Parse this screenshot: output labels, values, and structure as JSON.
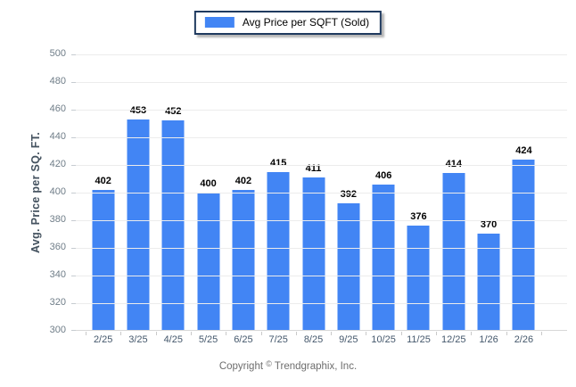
{
  "legend": {
    "label": "Avg Price per SQFT (Sold)",
    "swatch_color": "#4285f4"
  },
  "chart_data": {
    "type": "bar",
    "title": "",
    "categories": [
      "2/25",
      "3/25",
      "4/25",
      "5/25",
      "6/25",
      "7/25",
      "8/25",
      "9/25",
      "10/25",
      "11/25",
      "12/25",
      "1/26",
      "2/26"
    ],
    "series": [
      {
        "name": "Avg Price per SQFT (Sold)",
        "color": "#4285f4",
        "values": [
          402,
          453,
          452,
          400,
          402,
          415,
          411,
          392,
          406,
          376,
          414,
          370,
          424
        ]
      }
    ],
    "xlabel": "",
    "ylabel": "Avg. Price per SQ. FT.",
    "ylim": [
      300,
      500
    ],
    "ytick_step": 20,
    "grid": true,
    "legend_position": "top-center",
    "colors": {
      "bar": "#4285f4",
      "gridline": "#ececec",
      "y_tick_text": "#6f7d88",
      "x_tick_text": "#45586c",
      "axis_title_text": "#44525f",
      "value_label_text": "#000000",
      "legend_border": "#1f3a5f"
    }
  },
  "footer": {
    "prefix": "Copyright",
    "symbol": "©",
    "company": "Trendgraphix, Inc."
  }
}
